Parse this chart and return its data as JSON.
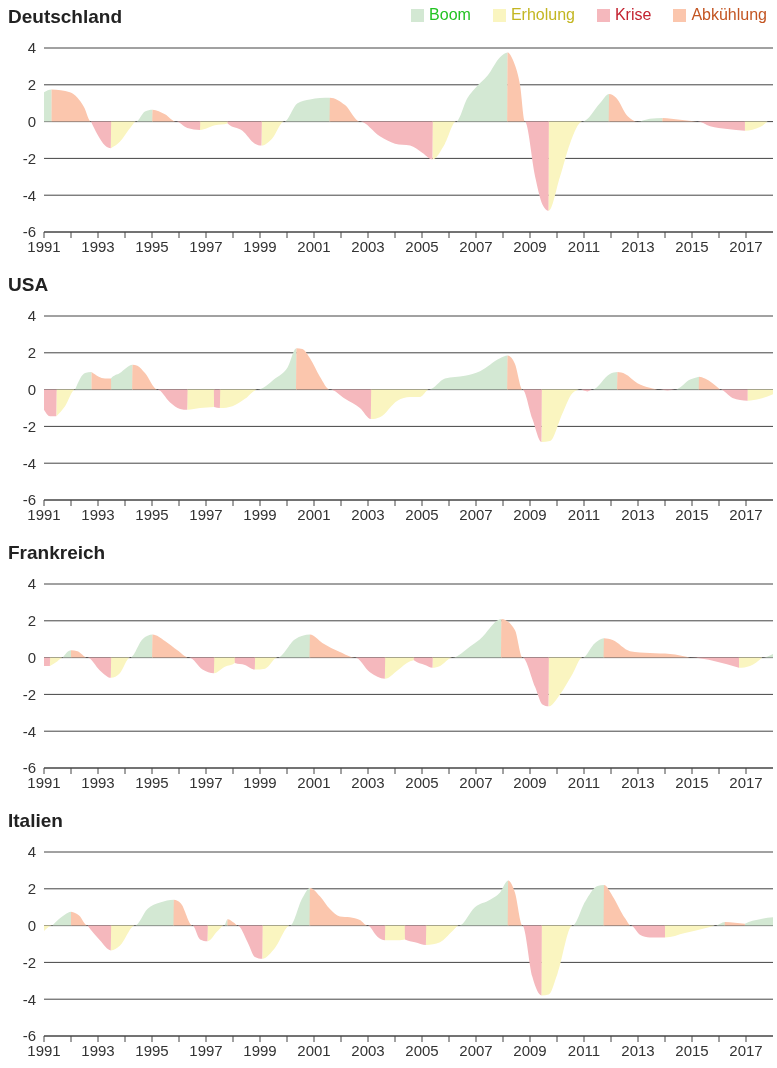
{
  "chart_data": [
    {
      "type": "area",
      "title": "Deutschland",
      "legend": "top right",
      "grid": "y",
      "xlim": [
        1991,
        2018
      ],
      "ylim": [
        -6,
        4
      ],
      "yticks": [
        -6,
        -4,
        -2,
        0,
        2,
        4
      ],
      "xticks": [
        1991,
        {
          "value": 1992,
          "label": null
        },
        1993,
        {
          "value": 1994,
          "label": null
        },
        1995,
        {
          "value": 1996,
          "label": null
        },
        1997,
        {
          "value": 1998,
          "label": null
        },
        1999,
        {
          "value": 2000,
          "label": null
        },
        2001,
        {
          "value": 2002,
          "label": null
        },
        2003,
        {
          "value": 2004,
          "label": null
        },
        2005,
        {
          "value": 2006,
          "label": null
        },
        2007,
        {
          "value": 2008,
          "label": null
        },
        2009,
        {
          "value": 2010,
          "label": null
        },
        2011,
        {
          "value": 2012,
          "label": null
        },
        2013,
        {
          "value": 2014,
          "label": null
        },
        2015,
        {
          "value": 2016,
          "label": null
        },
        2017
      ],
      "series": [
        {
          "name": "Boom",
          "color": "#d3e8d3",
          "x": [
            1991,
            1991.28,
            1991.29,
            1994.41,
            1994.74,
            1995.02,
            1995.03,
            1999.89,
            2000.39,
            2000.85,
            2001.22,
            2001.59,
            2001.6,
            2006.26,
            2006.69,
            2006.96,
            2007.43,
            2007.89,
            2008.17,
            2008.18,
            2010.94,
            2011.59,
            2011.93,
            2011.94,
            2012.98,
            2013.44,
            2013.91
          ],
          "values": [
            1.6,
            1.75,
            0,
            0,
            0.55,
            0.65,
            0,
            0,
            1.0,
            1.2,
            1.28,
            1.3,
            0,
            0,
            1.3,
            1.8,
            2.5,
            3.5,
            3.75,
            0,
            0,
            1.0,
            1.5,
            0,
            0,
            0.15,
            0.2
          ]
        },
        {
          "name": "Erholung",
          "color": "#faf5c0",
          "x": [
            1993.48,
            1993.81,
            1994.22,
            1994.41,
            1996.77,
            1996.78,
            1997.33,
            1997.8,
            1997.81,
            1999.05,
            1999.06,
            1999.46,
            1999.89,
            2005.38,
            2005.39,
            2005.85,
            2006.26,
            2009.68,
            2009.69,
            2010.11,
            2010.48,
            2010.94,
            2016.95,
            2016.96,
            2017.52,
            2017.8
          ],
          "values": [
            -1.45,
            -1.1,
            -0.3,
            0,
            0,
            -0.45,
            -0.2,
            -0.1,
            0,
            0,
            -1.3,
            -0.9,
            0,
            0,
            -2.05,
            -1.2,
            0,
            0,
            -4.85,
            -3.0,
            -1.2,
            0,
            0,
            -0.5,
            -0.3,
            0
          ]
        },
        {
          "name": "Krise",
          "color": "#f5b8bd",
          "x": [
            1992.74,
            1992.98,
            1993.26,
            1993.48,
            1993.49,
            1995.89,
            1996.31,
            1996.78,
            1996.79,
            1997.79,
            1997.8,
            1998.35,
            1998.81,
            1999.06,
            1999.07,
            2002.7,
            2003.44,
            2004.0,
            2004.56,
            2005.02,
            2005.39,
            2005.4,
            2008.81,
            2009.19,
            2009.46,
            2009.69,
            2009.7,
            2015.2,
            2015.67,
            2016.31,
            2016.96
          ],
          "values": [
            0,
            -0.7,
            -1.3,
            -1.45,
            0,
            0,
            -0.35,
            -0.45,
            0,
            0,
            -0.1,
            -0.5,
            -1.2,
            -1.3,
            0,
            0,
            -0.8,
            -1.2,
            -1.3,
            -1.7,
            -2.05,
            0,
            0,
            -3.0,
            -4.5,
            -4.85,
            0,
            0,
            -0.25,
            -0.4,
            -0.5
          ]
        },
        {
          "name": "Abkühlung",
          "color": "#fbc6ad",
          "x": [
            1991.28,
            1991.96,
            1992.24,
            1992.48,
            1992.74,
            1995.01,
            1995.02,
            1995.48,
            1995.89,
            2001.58,
            2001.59,
            2002.15,
            2002.7,
            2008.16,
            2008.17,
            2008.41,
            2008.63,
            2008.81,
            2011.92,
            2011.93,
            2012.19,
            2012.61,
            2012.98,
            2013.9,
            2013.91,
            2014.56,
            2015.2
          ],
          "values": [
            1.75,
            1.6,
            1.3,
            0.8,
            0,
            0,
            0.65,
            0.4,
            0,
            0,
            1.3,
            0.9,
            0,
            0,
            3.75,
            3.2,
            2.0,
            0,
            0,
            1.5,
            1.3,
            0.3,
            0,
            0,
            0.2,
            0.1,
            0
          ]
        }
      ]
    },
    {
      "type": "area",
      "title": "USA",
      "grid": "y",
      "xlim": [
        1991,
        2018
      ],
      "ylim": [
        -6,
        4
      ],
      "yticks": [
        -6,
        -4,
        -2,
        0,
        2,
        4
      ],
      "xticks": [
        1991,
        {
          "value": 1992,
          "label": null
        },
        1993,
        {
          "value": 1994,
          "label": null
        },
        1995,
        {
          "value": 1996,
          "label": null
        },
        1997,
        {
          "value": 1998,
          "label": null
        },
        1999,
        {
          "value": 2000,
          "label": null
        },
        2001,
        {
          "value": 2002,
          "label": null
        },
        2003,
        {
          "value": 2004,
          "label": null
        },
        2005,
        {
          "value": 2006,
          "label": null
        },
        2007,
        {
          "value": 2008,
          "label": null
        },
        2009,
        {
          "value": 2010,
          "label": null
        },
        2011,
        {
          "value": 2012,
          "label": null
        },
        2013,
        {
          "value": 2014,
          "label": null
        },
        2015,
        {
          "value": 2016,
          "label": null
        },
        2017
      ],
      "series": [
        {
          "color": "#d3e8d3",
          "x": [
            1992.15,
            1992.52,
            1992.76,
            1992.77,
            1993.47,
            1993.48,
            1993.81,
            1994.28,
            1994.29,
            1998.91,
            1999.56,
            2000.02,
            2000.35,
            2000.36,
            2005.26,
            2005.85,
            2006.59,
            2007.15,
            2007.89,
            2008.17,
            2008.18,
            2011.31,
            2011.96,
            2012.24,
            2012.25,
            2014.37,
            2014.93,
            2015.26
          ],
          "values": [
            0,
            0.9,
            0.95,
            0,
            0,
            0.6,
            0.9,
            1.35,
            0,
            0,
            0.6,
            1.2,
            2.25,
            0,
            0,
            0.6,
            0.75,
            1.0,
            1.7,
            1.85,
            0,
            0,
            0.85,
            0.95,
            0,
            0,
            0.55,
            0.7
          ]
        },
        {
          "color": "#faf5c0",
          "x": [
            1991.46,
            1991.78,
            1992.15,
            1996.3,
            1996.31,
            1996.78,
            1997.3,
            1997.31,
            1997.51,
            1997.52,
            1997.98,
            1998.44,
            1998.91,
            2003.1,
            2003.11,
            2003.44,
            2004.09,
            2004.56,
            2004.93,
            2005.26,
            2009.42,
            2009.43,
            2009.74,
            2010.2,
            2010.57,
            2010.85,
            2017.05,
            2017.06,
            2017.52,
            2018
          ],
          "values": [
            -1.45,
            -0.9,
            0,
            0,
            -1.1,
            -1.0,
            -0.95,
            0,
            0,
            -1.0,
            -0.9,
            -0.5,
            0,
            0,
            -1.6,
            -1.5,
            -0.6,
            -0.4,
            -0.4,
            0,
            0,
            -2.85,
            -2.8,
            -1.3,
            -0.2,
            0,
            0,
            -0.6,
            -0.5,
            -0.25
          ]
        },
        {
          "color": "#f5b8bd",
          "x": [
            1991,
            1991.22,
            1991.46,
            1991.47,
            1995.2,
            1995.67,
            1996.04,
            1996.31,
            1996.32,
            1997.29,
            1997.3,
            1997.52,
            1997.53,
            2001.59,
            2002.15,
            2002.7,
            2003.11,
            2003.12,
            2008.72,
            2009.09,
            2009.43,
            2009.44,
            2010.85,
            2011.13,
            2011.31,
            2013.81,
            2014.09,
            2014.37,
            2016.04,
            2016.5,
            2017.06
          ],
          "values": [
            -1.1,
            -1.45,
            -1.45,
            0,
            0,
            -0.7,
            -1.05,
            -1.1,
            0,
            0,
            -0.95,
            -1.0,
            0,
            0,
            -0.5,
            -1.0,
            -1.6,
            0,
            0,
            -1.6,
            -2.85,
            0,
            0,
            -0.1,
            0,
            0,
            -0.05,
            0,
            0,
            -0.45,
            -0.6
          ]
        },
        {
          "color": "#fbc6ad",
          "x": [
            1992.76,
            1993.26,
            1993.48,
            1993.49,
            1994.27,
            1994.28,
            1994.46,
            1994.74,
            1995.2,
            2000.34,
            2000.35,
            2000.57,
            2000.85,
            2001.22,
            2001.59,
            2008.16,
            2008.17,
            2008.44,
            2008.72,
            2012.23,
            2012.24,
            2012.52,
            2012.98,
            2013.44,
            2013.81,
            2015.25,
            2015.26,
            2015.48,
            2016.04
          ],
          "values": [
            0.95,
            0.6,
            0.6,
            0,
            0,
            1.35,
            1.3,
            0.9,
            0,
            0,
            2.25,
            2.2,
            1.7,
            0.7,
            0,
            0,
            1.85,
            1.4,
            0,
            0,
            0.95,
            0.85,
            0.35,
            0.1,
            0,
            0,
            0.7,
            0.6,
            0
          ]
        }
      ]
    },
    {
      "type": "area",
      "title": "Frankreich",
      "grid": "y",
      "xlim": [
        1991,
        2018
      ],
      "ylim": [
        -6,
        4
      ],
      "yticks": [
        -6,
        -4,
        -2,
        0,
        2,
        4
      ],
      "xticks": [
        1991,
        {
          "value": 1992,
          "label": null
        },
        1993,
        {
          "value": 1994,
          "label": null
        },
        1995,
        {
          "value": 1996,
          "label": null
        },
        1997,
        {
          "value": 1998,
          "label": null
        },
        1999,
        {
          "value": 2000,
          "label": null
        },
        2001,
        {
          "value": 2002,
          "label": null
        },
        2003,
        {
          "value": 2004,
          "label": null
        },
        2005,
        {
          "value": 2006,
          "label": null
        },
        2007,
        {
          "value": 2008,
          "label": null
        },
        2009,
        {
          "value": 2010,
          "label": null
        },
        2011,
        {
          "value": 2012,
          "label": null
        },
        2013,
        {
          "value": 2014,
          "label": null
        },
        2015,
        {
          "value": 2016,
          "label": null
        },
        2017
      ],
      "series": [
        {
          "color": "#d3e8d3",
          "x": [
            1991.69,
            1992.0,
            1992.01,
            1994.19,
            1994.65,
            1995.02,
            1995.03,
            1999.65,
            2000.3,
            2000.85,
            2000.86,
            2006.13,
            2006.78,
            2007.15,
            2007.94,
            2007.95,
            2010.94,
            2011.41,
            2011.74,
            2011.75,
            2017.61,
            2018
          ],
          "values": [
            0,
            0.4,
            0,
            0,
            1.0,
            1.25,
            0,
            0,
            1.0,
            1.25,
            0,
            0,
            0.6,
            1.0,
            2.1,
            0,
            0,
            0.8,
            1.05,
            0,
            0,
            0.2
          ]
        },
        {
          "color": "#faf5c0",
          "x": [
            1991.22,
            1991.5,
            1991.69,
            1993.47,
            1993.48,
            1993.81,
            1994.19,
            1997.29,
            1997.3,
            1997.7,
            1998.07,
            1998.08,
            1998.8,
            1998.81,
            1999.19,
            1999.65,
            2003.62,
            2003.63,
            2004.09,
            2004.56,
            2004.7,
            2004.71,
            2005.38,
            2005.39,
            2005.67,
            2006.13,
            2009.68,
            2009.69,
            2010.11,
            2010.57,
            2010.94,
            2016.73,
            2016.74,
            2017.15,
            2017.61
          ],
          "values": [
            -0.45,
            -0.2,
            0,
            0,
            -1.1,
            -0.85,
            0,
            0,
            -0.85,
            -0.5,
            -0.3,
            0,
            0,
            -0.65,
            -0.6,
            0,
            0,
            -1.15,
            -0.7,
            -0.2,
            -0.15,
            0,
            0,
            -0.55,
            -0.45,
            0,
            0,
            -2.65,
            -2.0,
            -0.9,
            0,
            0,
            -0.55,
            -0.45,
            0
          ]
        },
        {
          "color": "#f5b8bd",
          "x": [
            1991,
            1991.22,
            1991.23,
            1992.61,
            1993.07,
            1993.48,
            1993.49,
            1996.37,
            1996.87,
            1997.3,
            1997.31,
            1998.06,
            1998.07,
            1998.44,
            1998.81,
            1998.82,
            2002.52,
            2003.07,
            2003.63,
            2003.64,
            2004.69,
            2004.7,
            2005.11,
            2005.39,
            2005.4,
            2008.72,
            2009.19,
            2009.46,
            2009.69,
            2009.7,
            2014.93,
            2015.85,
            2016.74
          ],
          "values": [
            -0.45,
            -0.45,
            0,
            0,
            -0.7,
            -1.1,
            0,
            0,
            -0.65,
            -0.85,
            0,
            0,
            -0.3,
            -0.4,
            -0.65,
            0,
            0,
            -0.8,
            -1.15,
            0,
            0,
            -0.15,
            -0.4,
            -0.55,
            0,
            0,
            -1.6,
            -2.55,
            -2.65,
            0,
            0,
            -0.2,
            -0.55
          ]
        },
        {
          "color": "#fbc6ad",
          "x": [
            1992.0,
            1992.24,
            1992.61,
            1995.01,
            1995.02,
            1995.48,
            1995.94,
            1996.37,
            2000.84,
            2000.85,
            2001.31,
            2001.96,
            2002.52,
            2007.93,
            2007.94,
            2008.44,
            2008.72,
            2011.73,
            2011.74,
            2012.06,
            2012.7,
            2013.44,
            2014.19,
            2014.93
          ],
          "values": [
            0.4,
            0.35,
            0,
            0,
            1.25,
            0.9,
            0.4,
            0,
            0,
            1.25,
            0.8,
            0.3,
            0,
            0,
            2.1,
            1.5,
            0,
            0,
            1.05,
            0.95,
            0.35,
            0.25,
            0.2,
            0
          ]
        }
      ]
    },
    {
      "type": "area",
      "title": "Italien",
      "grid": "y",
      "xlim": [
        1991,
        2018
      ],
      "ylim": [
        -6,
        4
      ],
      "yticks": [
        -6,
        -4,
        -2,
        0,
        2,
        4
      ],
      "xticks": [
        1991,
        {
          "value": 1992,
          "label": null
        },
        1993,
        {
          "value": 1994,
          "label": null
        },
        1995,
        {
          "value": 1996,
          "label": null
        },
        1997,
        {
          "value": 1998,
          "label": null
        },
        1999,
        {
          "value": 2000,
          "label": null
        },
        2001,
        {
          "value": 2002,
          "label": null
        },
        2003,
        {
          "value": 2004,
          "label": null
        },
        2005,
        {
          "value": 2006,
          "label": null
        },
        2007,
        {
          "value": 2008,
          "label": null
        },
        2009,
        {
          "value": 2010,
          "label": null
        },
        2011,
        {
          "value": 2012,
          "label": null
        },
        2013,
        {
          "value": 2014,
          "label": null
        },
        2015,
        {
          "value": 2016,
          "label": null
        },
        2017
      ],
      "series": [
        {
          "color": "#d3e8d3",
          "x": [
            1991.31,
            1991.78,
            1992.0,
            1992.01,
            1994.37,
            1994.83,
            1995.3,
            1995.81,
            1995.82,
            1997.67,
            1997.8,
            1997.81,
            2000.11,
            2000.57,
            2000.85,
            2000.86,
            2006.37,
            2006.96,
            2007.52,
            2007.89,
            2008.19,
            2008.2,
            2010.57,
            2011.04,
            2011.5,
            2011.74,
            2011.75,
            2015.85,
            2016.22,
            2016.23,
            2016.95,
            2016.96,
            2017.52,
            2018
          ],
          "values": [
            0,
            0.6,
            0.75,
            0,
            0,
            0.9,
            1.25,
            1.4,
            0,
            0,
            0.35,
            0,
            0,
            1.5,
            2.05,
            0,
            0,
            1.0,
            1.4,
            1.8,
            2.45,
            0,
            0,
            1.3,
            2.15,
            2.2,
            0,
            0,
            0.2,
            0,
            0,
            0.1,
            0.35,
            0.45
          ]
        },
        {
          "color": "#faf5c0",
          "x": [
            1991,
            1991.31,
            1993.47,
            1993.48,
            1993.81,
            1994.37,
            1997.05,
            1997.06,
            1997.43,
            1997.67,
            1999.08,
            1999.09,
            1999.56,
            2000.11,
            2003.62,
            2003.63,
            2004.0,
            2004.37,
            2004.38,
            2005.14,
            2005.15,
            2005.67,
            2006.13,
            2006.37,
            2009.42,
            2009.43,
            2009.69,
            2010.02,
            2010.57,
            2013.99,
            2014.0,
            2014.74,
            2015.48,
            2015.85
          ],
          "values": [
            -0.3,
            0,
            0,
            -1.35,
            -1.1,
            0,
            0,
            -0.85,
            -0.3,
            0,
            0,
            -1.8,
            -1.2,
            0,
            0,
            -0.8,
            -0.8,
            -0.75,
            0,
            0,
            -1.05,
            -0.9,
            -0.3,
            0,
            0,
            -3.8,
            -3.75,
            -2.6,
            0,
            0,
            -0.65,
            -0.4,
            -0.15,
            0
          ]
        },
        {
          "color": "#f5b8bd",
          "x": [
            1992.61,
            1993.07,
            1993.48,
            1993.49,
            1996.5,
            1996.78,
            1997.06,
            1997.07,
            1998.17,
            1998.54,
            1998.81,
            1999.09,
            1999.1,
            2002.98,
            2003.35,
            2003.63,
            2003.64,
            2004.36,
            2004.37,
            2004.74,
            2005.15,
            2005.16,
            2008.72,
            2009.09,
            2009.43,
            2009.44,
            2012.74,
            2013.07,
            2013.44,
            2014.0
          ],
          "values": [
            0,
            -0.8,
            -1.35,
            0,
            0,
            -0.75,
            -0.85,
            0,
            0,
            -0.9,
            -1.7,
            -1.8,
            0,
            0,
            -0.6,
            -0.8,
            0,
            0,
            -0.75,
            -0.9,
            -1.05,
            0,
            0,
            -2.8,
            -3.8,
            0,
            0,
            -0.5,
            -0.65,
            -0.65
          ]
        },
        {
          "color": "#fbc6ad",
          "x": [
            1992.0,
            1992.3,
            1992.61,
            1995.8,
            1995.81,
            1996.07,
            1996.5,
            1997.79,
            1997.8,
            1998.04,
            1998.17,
            2000.84,
            2000.85,
            2001.22,
            2001.59,
            2001.96,
            2002.33,
            2002.7,
            2002.98,
            2008.18,
            2008.19,
            2008.44,
            2008.72,
            2011.73,
            2011.74,
            2012.06,
            2012.52,
            2012.74,
            2016.21,
            2016.22,
            2016.59,
            2016.96
          ],
          "values": [
            0.75,
            0.55,
            0,
            0,
            1.4,
            1.2,
            0,
            0,
            0.35,
            0.15,
            0,
            0,
            2.05,
            1.6,
            0.9,
            0.5,
            0.45,
            0.3,
            0,
            0,
            2.45,
            1.8,
            0,
            0,
            2.2,
            1.6,
            0.4,
            0,
            0,
            0.2,
            0.15,
            0.1
          ]
        }
      ]
    }
  ]
}
